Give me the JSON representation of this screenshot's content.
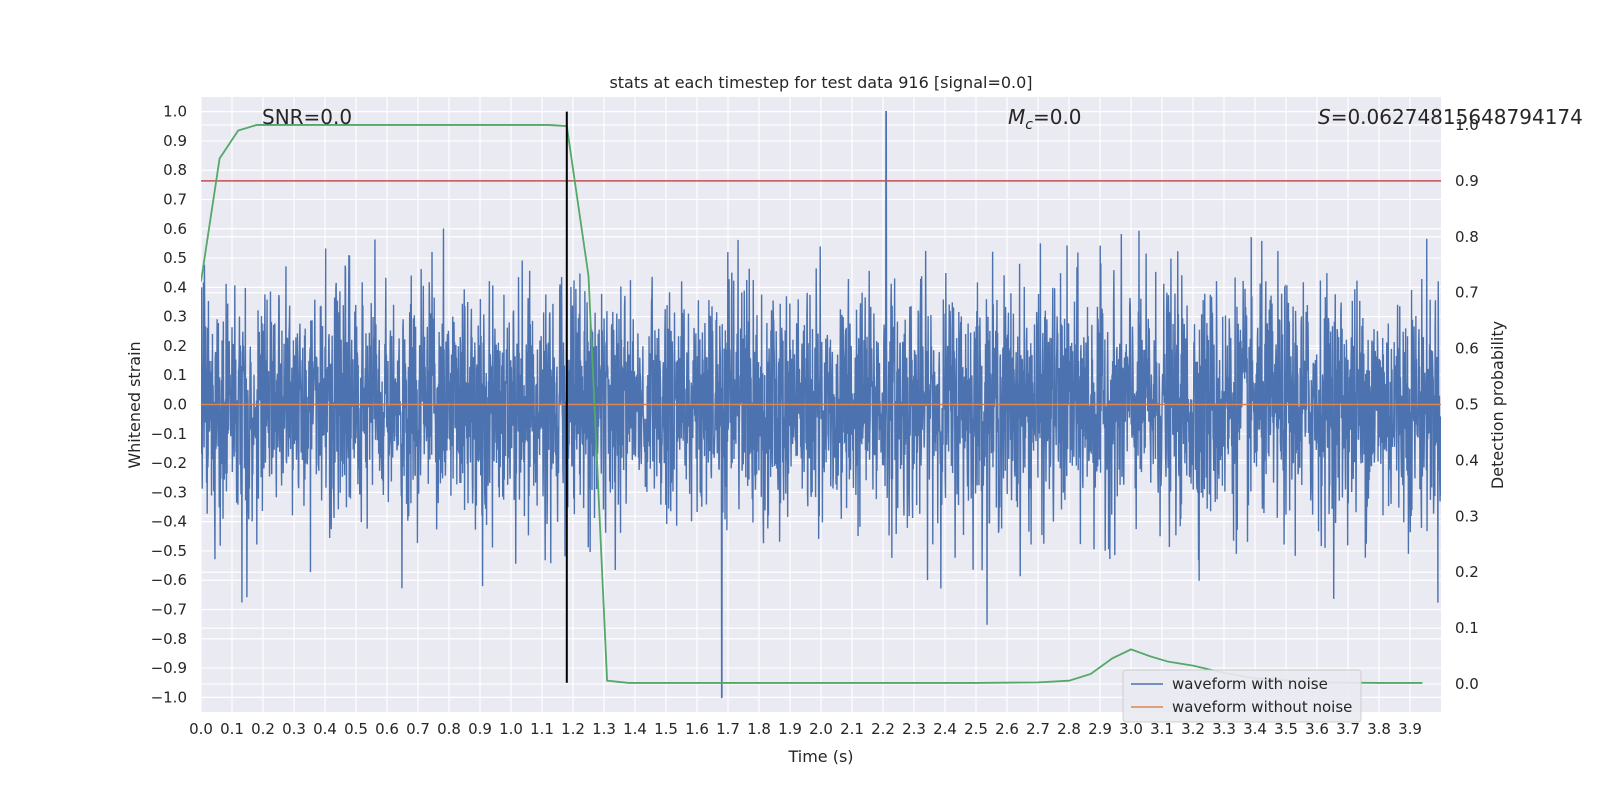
{
  "chart_data": {
    "type": "line",
    "title": "stats at each timestep for test data 916 [signal=0.0]",
    "xlabel": "Time (s)",
    "ylabel": "Whitened strain",
    "y2label": "Detection probability",
    "xlim": [
      0.0,
      4.0
    ],
    "ylim": [
      -1.05,
      1.05
    ],
    "y2lim": [
      -0.05,
      1.05
    ],
    "x_ticks": [
      0.0,
      0.1,
      0.2,
      0.3,
      0.4,
      0.5,
      0.6,
      0.7,
      0.8,
      0.9,
      1.0,
      1.1,
      1.2,
      1.3,
      1.4,
      1.5,
      1.6,
      1.7,
      1.8,
      1.9,
      2.0,
      2.1,
      2.2,
      2.3,
      2.4,
      2.5,
      2.6,
      2.7,
      2.8,
      2.9,
      3.0,
      3.1,
      3.2,
      3.3,
      3.4,
      3.5,
      3.6,
      3.7,
      3.8,
      3.9
    ],
    "y_ticks": [
      1.0,
      0.9,
      0.8,
      0.7,
      0.6,
      0.5,
      0.4,
      0.3,
      0.2,
      0.1,
      0.0,
      -0.1,
      -0.2,
      -0.3,
      -0.4,
      -0.5,
      -0.6,
      -0.7,
      -0.8,
      -0.9,
      -1.0
    ],
    "y2_ticks": [
      1.0,
      0.9,
      0.8,
      0.7,
      0.6,
      0.5,
      0.4,
      0.3,
      0.2,
      0.1,
      0.0
    ],
    "annotations": {
      "snr": "SNR=0.0",
      "mc_symbol": "M",
      "mc_sub": "c",
      "mc_value": "=0.0",
      "s_symbol": "S",
      "s_value": "=0.06274815648794174"
    },
    "threshold_y2": 0.9,
    "vline_x": 1.18,
    "vline_ymin": -0.95,
    "vline_ymax": 1.0,
    "series": [
      {
        "name": "waveform with noise",
        "color": "#4c72b0",
        "seed": 916,
        "n_samples": 4000,
        "amplitude": 0.2,
        "peak_x": 2.21,
        "peak_y": 1.0,
        "min_x": 1.68,
        "min_y": -1.0
      },
      {
        "name": "waveform without noise",
        "color": "#dd8452",
        "x": [
          0.0,
          4.0
        ],
        "y": [
          0.0,
          0.0
        ]
      },
      {
        "name": "detection probability",
        "color": "#55a868",
        "axis": "y2",
        "x": [
          0.0,
          0.06,
          0.12,
          0.18,
          0.24,
          0.3,
          0.5,
          0.8,
          1.0,
          1.12,
          1.18,
          1.25,
          1.31,
          1.38,
          1.5,
          2.0,
          2.5,
          2.7,
          2.8,
          2.87,
          2.94,
          3.0,
          3.06,
          3.12,
          3.2,
          3.3,
          3.4,
          3.6,
          3.8,
          3.94
        ],
        "y": [
          0.72,
          0.94,
          0.99,
          1.0,
          1.0,
          1.0,
          1.0,
          1.0,
          1.0,
          1.0,
          0.998,
          0.73,
          0.006,
          0.002,
          0.002,
          0.002,
          0.002,
          0.003,
          0.006,
          0.018,
          0.046,
          0.062,
          0.05,
          0.04,
          0.033,
          0.02,
          0.01,
          0.003,
          0.002,
          0.002
        ]
      }
    ],
    "threshold_color": "#c44e52",
    "vline_color": "#000000",
    "legend": {
      "position": "lower-right",
      "entries": [
        "waveform with noise",
        "waveform without noise"
      ]
    },
    "grid": true
  }
}
